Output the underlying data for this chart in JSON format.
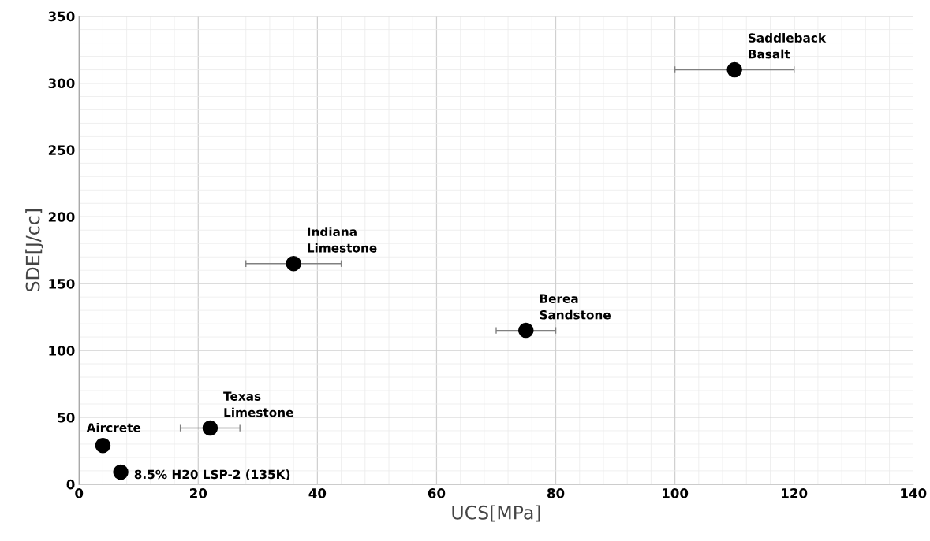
{
  "chart_data": {
    "type": "scatter",
    "xlabel": "UCS[MPa]",
    "ylabel": "SDE[J/cc]",
    "x": [
      110,
      36,
      75,
      22,
      4,
      7
    ],
    "values": [
      310,
      165,
      115,
      42,
      29,
      9
    ],
    "xerrors": [
      [
        100,
        120
      ],
      [
        28,
        44
      ],
      [
        70,
        80
      ],
      [
        17,
        27
      ],
      null,
      null
    ],
    "color": "#000000",
    "marker": "circle",
    "xlim": [
      0,
      140
    ],
    "xticks": [
      0,
      20,
      40,
      60,
      80,
      100,
      120,
      140
    ],
    "ylim": [
      0,
      350
    ],
    "yticks": [
      0,
      50,
      100,
      150,
      200,
      250,
      300,
      350
    ],
    "grid": true,
    "annotations": [
      {
        "text": "Saddleback\nBasalt",
        "x": 110,
        "y": 310
      },
      {
        "text": "Indiana\nLimestone",
        "x": 36,
        "y": 165
      },
      {
        "text": "Berea\nSandstone",
        "x": 75,
        "y": 115
      },
      {
        "text": "Texas\nLimestone",
        "x": 22,
        "y": 42
      },
      {
        "text": "Aircrete",
        "x": 4,
        "y": 29
      },
      {
        "text": "8.5% H20 LSP-2 (135K)",
        "x": 7,
        "y": 9
      }
    ]
  }
}
